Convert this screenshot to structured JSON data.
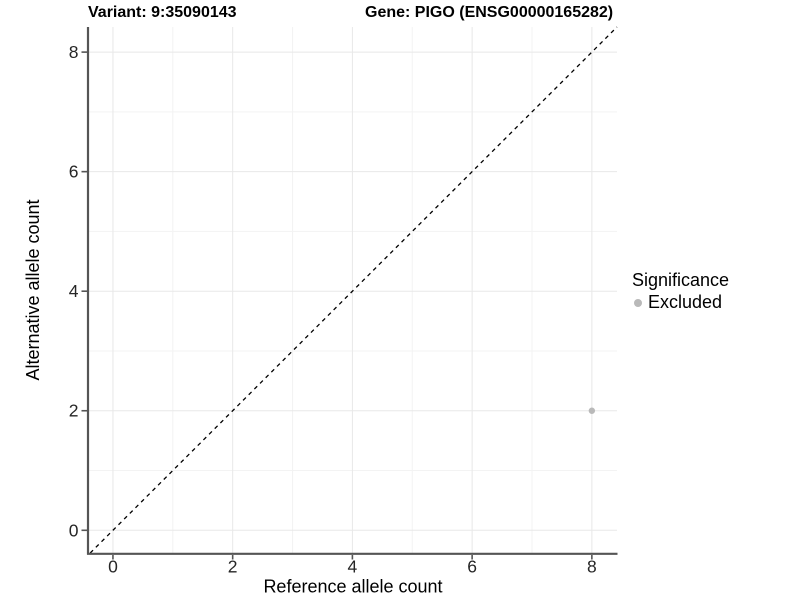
{
  "titles": {
    "variant": "Variant: 9:35090143",
    "gene": "Gene: PIGO (ENSG00000165282)"
  },
  "legend": {
    "title": "Significance",
    "items": [
      {
        "label": "Excluded",
        "color": "#b9b9b9"
      }
    ]
  },
  "chart_data": {
    "type": "scatter",
    "xlabel": "Reference allele count",
    "ylabel": "Alternative allele count",
    "xlim": [
      -0.4,
      8.42
    ],
    "ylim": [
      -0.38,
      8.42
    ],
    "xticks": [
      0,
      2,
      4,
      6,
      8
    ],
    "yticks": [
      0,
      2,
      4,
      6,
      8
    ],
    "minor_ticks": [
      1,
      3,
      5,
      7
    ],
    "grid": "major-and-minor",
    "legend_position": "right",
    "points": [
      {
        "x": 8,
        "y": 2,
        "significance": "Excluded",
        "color": "#b9b9b9"
      }
    ],
    "identity_line": {
      "slope": 1,
      "intercept": 0,
      "style": "dashed",
      "color": "#000000"
    },
    "colors": {
      "axis_line": "#555555",
      "tick_mark": "#555555",
      "tick_label": "#262626",
      "axis_title": "#000000",
      "grid_major": "#e8e8e8",
      "grid_minor": "#f3f3f3"
    }
  }
}
